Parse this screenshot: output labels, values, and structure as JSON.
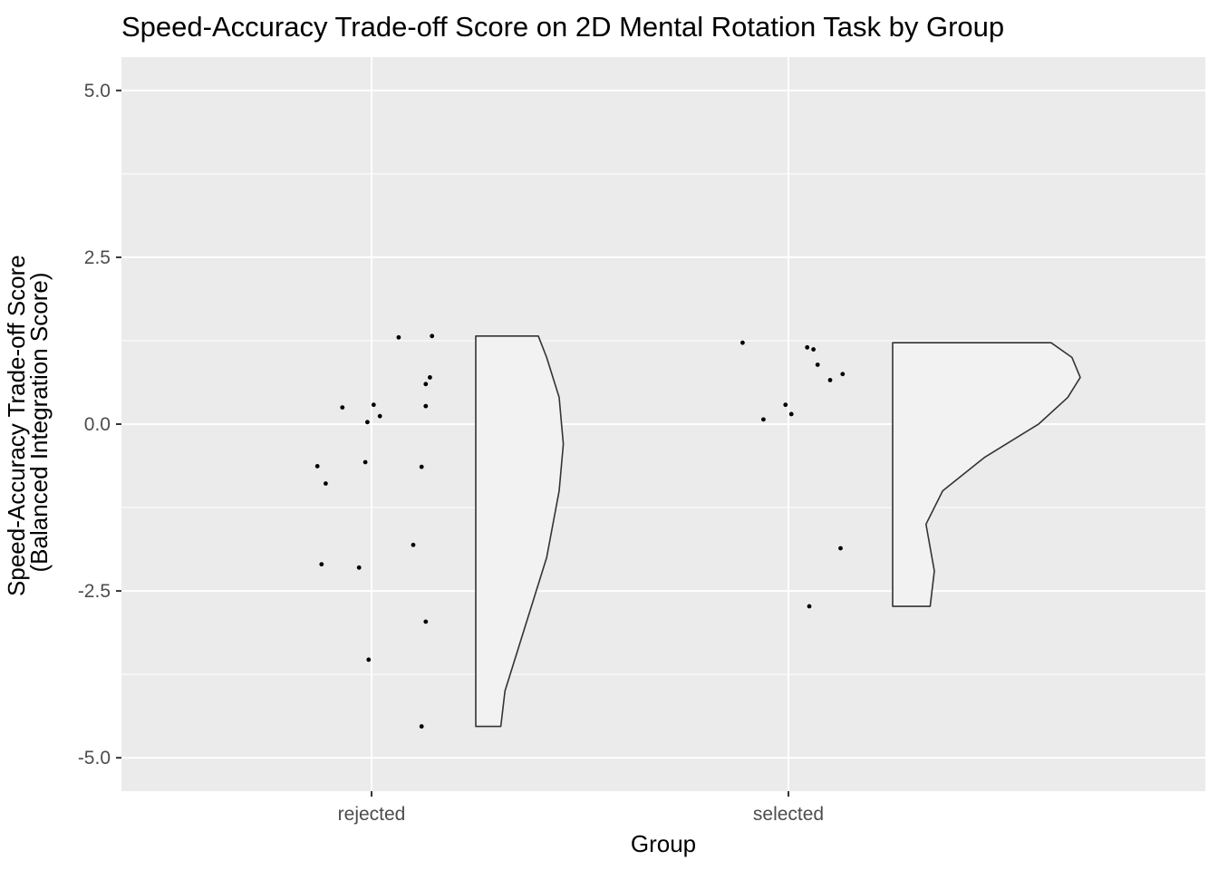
{
  "chart_data": {
    "type": "scatter",
    "subtype": "raincloud (jittered points + half-violin)",
    "title": "Speed-Accuracy Trade-off Score on 2D Mental Rotation Task by Group",
    "xlabel": "Group",
    "ylabel_lines": [
      "Speed-Accuracy Trade-off Score",
      "(Balanced Integration Score)"
    ],
    "categories": [
      "rejected",
      "selected"
    ],
    "ylim": [
      -5.5,
      5.5
    ],
    "y_ticks": [
      -5.0,
      -2.5,
      0.0,
      2.5,
      5.0
    ],
    "y_tick_labels": [
      "-5.0",
      "-2.5",
      "0.0",
      "2.5",
      "5.0"
    ],
    "grid": true,
    "legend": "none",
    "colors": {
      "panel_background": "#ebebeb",
      "grid": "#ffffff",
      "points": "#000000",
      "violin_fill": "#f2f2f2",
      "violin_stroke": "#333333"
    },
    "series": [
      {
        "category": "rejected",
        "points": [
          {
            "jitter": -0.13,
            "y": -0.63
          },
          {
            "jitter": -0.11,
            "y": -0.89
          },
          {
            "jitter": -0.12,
            "y": -2.1
          },
          {
            "jitter": -0.07,
            "y": 0.25
          },
          {
            "jitter": -0.03,
            "y": -2.15
          },
          {
            "jitter": -0.015,
            "y": -0.57
          },
          {
            "jitter": -0.01,
            "y": 0.03
          },
          {
            "jitter": -0.007,
            "y": -3.53
          },
          {
            "jitter": 0.005,
            "y": 0.29
          },
          {
            "jitter": 0.02,
            "y": 0.12
          },
          {
            "jitter": 0.065,
            "y": 1.3
          },
          {
            "jitter": 0.1,
            "y": -1.81
          },
          {
            "jitter": 0.12,
            "y": -0.64
          },
          {
            "jitter": 0.13,
            "y": 0.27
          },
          {
            "jitter": 0.13,
            "y": 0.6
          },
          {
            "jitter": 0.13,
            "y": -2.96
          },
          {
            "jitter": 0.14,
            "y": 0.7
          },
          {
            "jitter": 0.145,
            "y": 1.32
          },
          {
            "jitter": 0.12,
            "y": -4.53
          }
        ],
        "violin": {
          "range": [
            -4.53,
            1.32
          ],
          "profile": [
            {
              "y": -4.53,
              "width": 0.06
            },
            {
              "y": -4.0,
              "width": 0.07
            },
            {
              "y": -3.0,
              "width": 0.12
            },
            {
              "y": -2.0,
              "width": 0.17
            },
            {
              "y": -1.0,
              "width": 0.2
            },
            {
              "y": -0.3,
              "width": 0.21
            },
            {
              "y": 0.4,
              "width": 0.2
            },
            {
              "y": 1.0,
              "width": 0.17
            },
            {
              "y": 1.32,
              "width": 0.15
            }
          ]
        }
      },
      {
        "category": "selected",
        "points": [
          {
            "jitter": -0.11,
            "y": 1.22
          },
          {
            "jitter": -0.06,
            "y": 0.07
          },
          {
            "jitter": -0.007,
            "y": 0.29
          },
          {
            "jitter": 0.007,
            "y": 0.15
          },
          {
            "jitter": 0.045,
            "y": 1.15
          },
          {
            "jitter": 0.06,
            "y": 1.12
          },
          {
            "jitter": 0.07,
            "y": 0.89
          },
          {
            "jitter": 0.1,
            "y": 0.66
          },
          {
            "jitter": 0.13,
            "y": 0.75
          },
          {
            "jitter": 0.125,
            "y": -1.86
          },
          {
            "jitter": 0.05,
            "y": -2.73
          }
        ],
        "violin": {
          "range": [
            -2.73,
            1.22
          ],
          "profile": [
            {
              "y": -2.73,
              "width": 0.09
            },
            {
              "y": -2.2,
              "width": 0.1
            },
            {
              "y": -1.5,
              "width": 0.08
            },
            {
              "y": -1.0,
              "width": 0.12
            },
            {
              "y": -0.5,
              "width": 0.22
            },
            {
              "y": 0.0,
              "width": 0.35
            },
            {
              "y": 0.4,
              "width": 0.42
            },
            {
              "y": 0.7,
              "width": 0.45
            },
            {
              "y": 1.0,
              "width": 0.43
            },
            {
              "y": 1.22,
              "width": 0.38
            }
          ]
        }
      }
    ]
  }
}
